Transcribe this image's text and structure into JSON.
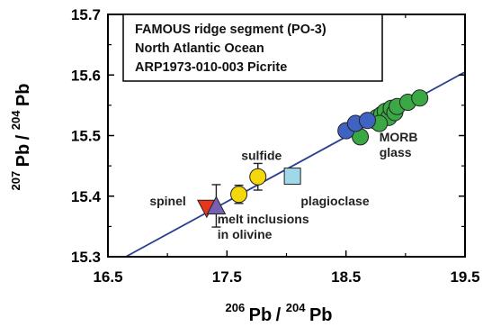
{
  "chart_data": {
    "type": "scatter",
    "title": "",
    "info_box": [
      "FAMOUS ridge segment (PO-3)",
      "North Atlantic Ocean",
      "ARP1973-010-003 Picrite"
    ],
    "xlabel": {
      "sup1": "206",
      "main1": "Pb",
      "sep": "/ ",
      "sup2": "204",
      "main2": "Pb"
    },
    "ylabel": {
      "sup1": "207",
      "main1": "Pb",
      "sep": "/ ",
      "sup2": "204",
      "main2": "Pb"
    },
    "xlim": [
      16.5,
      19.5
    ],
    "ylim": [
      15.3,
      15.7
    ],
    "xticks": [
      "16.5",
      "17.5",
      "18.5",
      "19.5"
    ],
    "yticks": [
      "15.3",
      "15.4",
      "15.5",
      "15.6",
      "15.7"
    ],
    "grid": false,
    "colors": {
      "line": "#2a3f8f",
      "morb_green": "#3aa845",
      "blue": "#3f63c2",
      "sulfide_yellow": "#f5d80c",
      "spinel_red": "#e8351e",
      "spinel_purple": "#7560b3",
      "plagioclase": "#9fd8e6"
    },
    "reference_line": {
      "x": [
        16.65,
        19.5
      ],
      "y": [
        15.3,
        15.605
      ]
    },
    "annotations": [
      {
        "text": "sulfide",
        "x": 17.62,
        "y": 15.46
      },
      {
        "text": "spinel",
        "x": 16.85,
        "y": 15.385
      },
      {
        "text": "plagioclase",
        "x": 18.12,
        "y": 15.385
      },
      {
        "text": "melt inclusions",
        "x": 17.42,
        "y": 15.355
      },
      {
        "text": "in olivine",
        "x": 17.42,
        "y": 15.33
      },
      {
        "text": "MORB",
        "x": 18.78,
        "y": 15.49
      },
      {
        "text": "glass",
        "x": 18.78,
        "y": 15.465
      }
    ],
    "series": [
      {
        "marker": "circle",
        "color": "#3aa845",
        "points": [
          {
            "x": 18.62,
            "y": 15.498
          },
          {
            "x": 18.74,
            "y": 15.525
          },
          {
            "x": 18.76,
            "y": 15.53
          },
          {
            "x": 18.8,
            "y": 15.535
          },
          {
            "x": 18.83,
            "y": 15.54
          },
          {
            "x": 18.86,
            "y": 15.53
          },
          {
            "x": 18.88,
            "y": 15.545
          },
          {
            "x": 18.91,
            "y": 15.538
          },
          {
            "x": 18.93,
            "y": 15.548
          },
          {
            "x": 19.02,
            "y": 15.555
          },
          {
            "x": 19.12,
            "y": 15.562
          },
          {
            "x": 18.78,
            "y": 15.52
          }
        ]
      },
      {
        "marker": "circle",
        "color": "#3f63c2",
        "points": [
          {
            "x": 18.5,
            "y": 15.508
          },
          {
            "x": 18.58,
            "y": 15.52
          },
          {
            "x": 18.68,
            "y": 15.525
          }
        ]
      },
      {
        "marker": "circle",
        "color": "#f5d80c",
        "errorbars": true,
        "points": [
          {
            "x": 17.6,
            "y": 15.403,
            "yerr": 0.015
          },
          {
            "x": 17.76,
            "y": 15.432,
            "yerr": 0.022
          }
        ]
      },
      {
        "marker": "triangle-down",
        "color": "#e8351e",
        "points": [
          {
            "x": 17.33,
            "y": 15.38
          }
        ]
      },
      {
        "marker": "triangle-up",
        "color": "#7560b3",
        "errorbars": true,
        "points": [
          {
            "x": 17.41,
            "y": 15.384,
            "yerr": 0.035
          }
        ]
      },
      {
        "marker": "square",
        "color": "#9fd8e6",
        "points": [
          {
            "x": 18.05,
            "y": 15.433
          }
        ]
      }
    ]
  }
}
